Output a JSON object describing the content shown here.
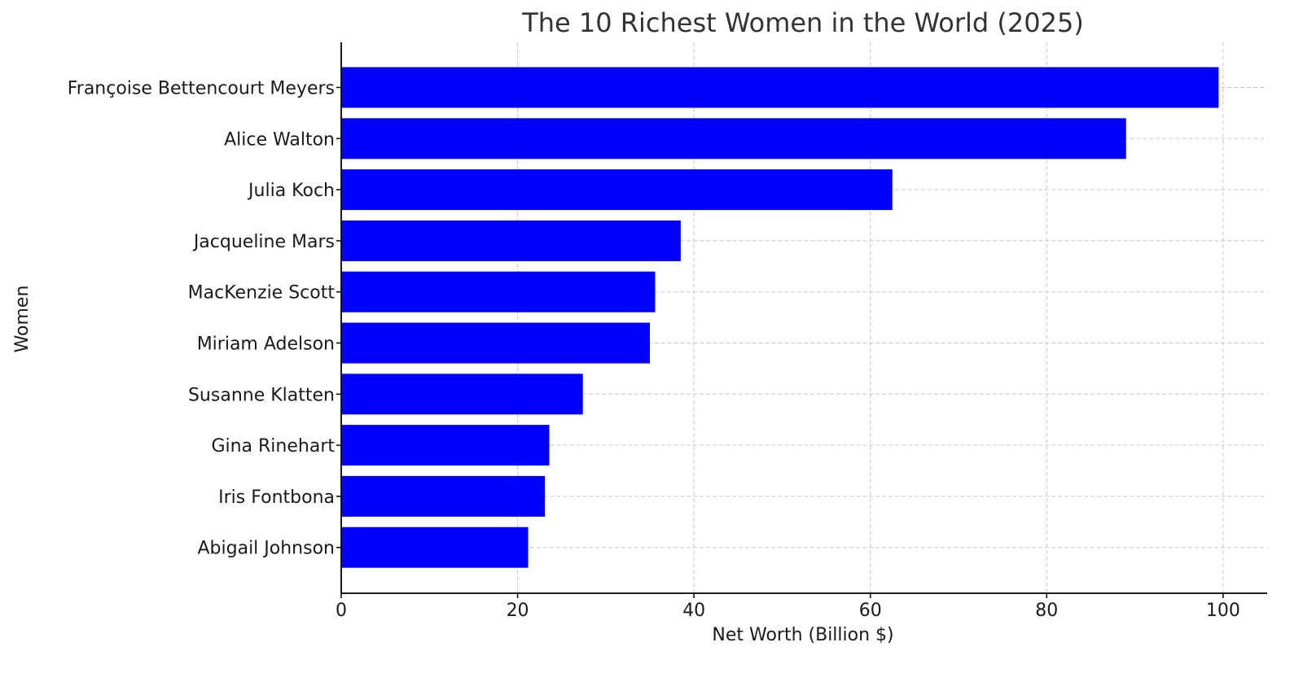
{
  "chart_data": {
    "type": "bar",
    "orientation": "horizontal",
    "title": "The 10 Richest Women in the World (2025)",
    "xlabel": "Net Worth (Billion $)",
    "ylabel": "Women",
    "xlim": [
      0,
      105
    ],
    "xticks": [
      0,
      20,
      40,
      60,
      80,
      100
    ],
    "grid": true,
    "bar_color": "#0000ff",
    "categories": [
      "Françoise Bettencourt Meyers",
      "Alice Walton",
      "Julia Koch",
      "Jacqueline Mars",
      "MacKenzie Scott",
      "Miriam Adelson",
      "Susanne Klatten",
      "Gina Rinehart",
      "Iris Fontbona",
      "Abigail Johnson"
    ],
    "values": [
      99.5,
      89.0,
      62.5,
      38.5,
      35.6,
      35.0,
      27.4,
      23.6,
      23.1,
      21.2
    ]
  }
}
